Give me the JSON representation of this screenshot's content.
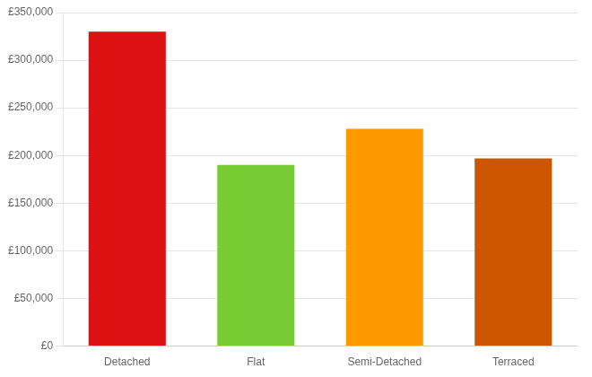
{
  "chart_data": {
    "type": "bar",
    "categories": [
      "Detached",
      "Flat",
      "Semi-Detached",
      "Terraced"
    ],
    "values": [
      330000,
      190000,
      228000,
      197000
    ],
    "colors": [
      "#dd1111",
      "#77cc33",
      "#ff9900",
      "#cc5500"
    ],
    "ylim": [
      0,
      350000
    ],
    "yticks": [
      {
        "value": 0,
        "label": "£0"
      },
      {
        "value": 50000,
        "label": "£50,000"
      },
      {
        "value": 100000,
        "label": "£100,000"
      },
      {
        "value": 150000,
        "label": "£150,000"
      },
      {
        "value": 200000,
        "label": "£200,000"
      },
      {
        "value": 250000,
        "label": "£250,000"
      },
      {
        "value": 300000,
        "label": "£300,000"
      },
      {
        "value": 350000,
        "label": "£350,000"
      }
    ],
    "grid": true
  }
}
